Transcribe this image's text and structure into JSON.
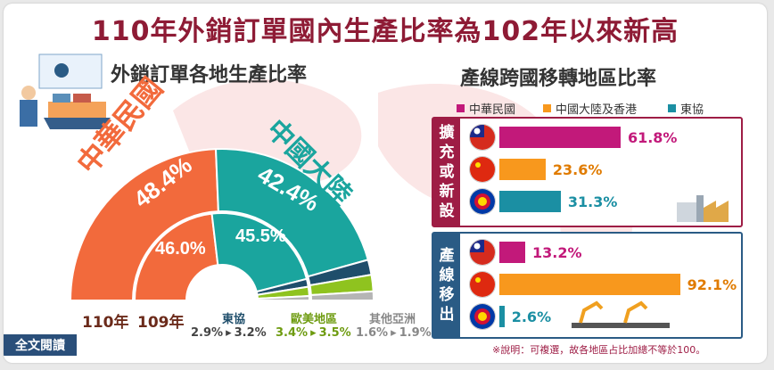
{
  "title": "110年外銷訂單國內生產比率為102年以來新高",
  "left_subtitle": "外銷訂單各地生產比率",
  "right_subtitle": "產線跨國移轉地區比率",
  "colors": {
    "taiwan": "#f26a3c",
    "china": "#1aa59e",
    "asean": "#1f4e6b",
    "americas": "#8fc31f",
    "other_asia": "#b5b5b5",
    "red": "#9e1d45",
    "pink": "#c2197a",
    "orange": "#f8981d",
    "teal": "#1b8fa3"
  },
  "chart_data": [
    {
      "type": "pie",
      "title": "外銷訂單各地生產比率",
      "series": [
        {
          "name": "110年",
          "values": [
            {
              "label": "中華民國",
              "value": 48.4
            },
            {
              "label": "中國大陸",
              "value": 42.4
            },
            {
              "label": "東協",
              "value": 3.2
            },
            {
              "label": "歐美地區",
              "value": 3.5
            },
            {
              "label": "其他亞洲",
              "value": 1.9
            }
          ]
        },
        {
          "name": "109年",
          "values": [
            {
              "label": "中華民國",
              "value": 46.0
            },
            {
              "label": "中國大陸",
              "value": 45.5
            },
            {
              "label": "東協",
              "value": 2.9
            },
            {
              "label": "歐美地區",
              "value": 3.4
            },
            {
              "label": "其他亞洲",
              "value": 1.6
            }
          ]
        }
      ]
    },
    {
      "type": "bar",
      "title": "產線跨國移轉地區比率",
      "categories": [
        "中華民國",
        "中國大陸及香港",
        "東協"
      ],
      "series": [
        {
          "name": "擴充或新設",
          "values": [
            61.8,
            23.6,
            31.3
          ]
        },
        {
          "name": "產線移出",
          "values": [
            13.2,
            92.1,
            2.6
          ]
        }
      ]
    }
  ],
  "donut": {
    "outer": {
      "tw": "48.4%",
      "cn": "42.4%"
    },
    "inner": {
      "tw": "46.0%",
      "cn": "45.5%"
    },
    "outer_label_tw": "中華民國",
    "outer_label_cn": "中國大陸",
    "year_110": "110年",
    "year_109": "109年",
    "groups": [
      {
        "name": "東協",
        "from": "2.9%",
        "to": "3.2%"
      },
      {
        "name": "歐美地區",
        "from": "3.4%",
        "to": "3.5%"
      },
      {
        "name": "其他亞洲",
        "from": "1.6%",
        "to": "1.9%"
      }
    ],
    "arrow": "▸"
  },
  "legend": [
    "中華民國",
    "中國大陸及香港",
    "東協"
  ],
  "panels": {
    "expand": {
      "tag": [
        "擴",
        "充",
        "或",
        "新",
        "設"
      ],
      "values": [
        "61.8%",
        "23.6%",
        "31.3%"
      ]
    },
    "move": {
      "tag": [
        "產",
        "線",
        "移",
        "出"
      ],
      "values": [
        "13.2%",
        "92.1%",
        "2.6%"
      ]
    }
  },
  "note": "※說明：可複選，故各地區占比加總不等於100。",
  "fulltext_button": "全文閱讀"
}
